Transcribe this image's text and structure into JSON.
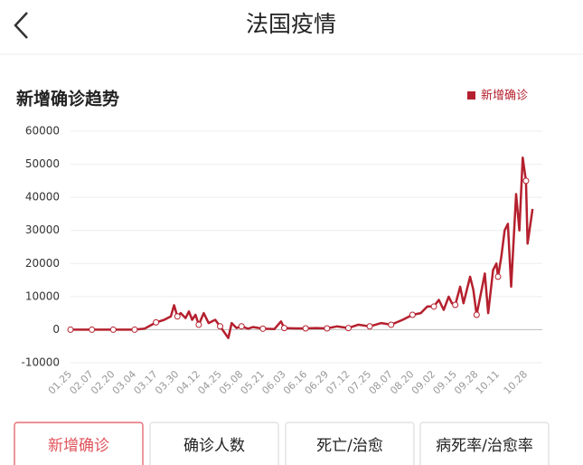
{
  "header": {
    "title": "法国疫情"
  },
  "chart_data": {
    "type": "line",
    "title": "新增确诊趋势",
    "x": [
      "01.25",
      "02.07",
      "02.20",
      "03.04",
      "03.10",
      "03.17",
      "03.22",
      "03.26",
      "03.28",
      "03.30",
      "04.01",
      "04.04",
      "04.06",
      "04.08",
      "04.10",
      "04.12",
      "04.15",
      "04.18",
      "04.22",
      "04.25",
      "04.30",
      "05.02",
      "05.05",
      "05.08",
      "05.12",
      "05.15",
      "05.21",
      "05.28",
      "06.01",
      "06.03",
      "06.10",
      "06.16",
      "06.22",
      "06.29",
      "07.05",
      "07.12",
      "07.18",
      "07.25",
      "08.01",
      "08.07",
      "08.14",
      "08.20",
      "08.25",
      "08.29",
      "09.02",
      "09.05",
      "09.08",
      "09.11",
      "09.13",
      "09.15",
      "09.18",
      "09.20",
      "09.24",
      "09.26",
      "09.28",
      "10.01",
      "10.03",
      "10.05",
      "10.08",
      "10.10",
      "10.11",
      "10.13",
      "10.15",
      "10.17",
      "10.19",
      "10.22",
      "10.24",
      "10.26",
      "10.28",
      "10.29",
      "11.01"
    ],
    "series": [
      {
        "name": "新增确诊",
        "color": "#b5202e",
        "values": [
          0,
          0,
          0,
          0,
          300,
          2200,
          3000,
          4000,
          7400,
          4000,
          5000,
          3500,
          5500,
          3000,
          4500,
          1500,
          5000,
          2000,
          3000,
          1000,
          -2500,
          2000,
          500,
          1000,
          300,
          800,
          300,
          200,
          2500,
          500,
          400,
          400,
          500,
          400,
          1000,
          500,
          1500,
          1000,
          2000,
          1500,
          3000,
          4500,
          5000,
          7000,
          7000,
          9000,
          6000,
          10000,
          8000,
          7500,
          13000,
          8000,
          16000,
          12000,
          4500,
          12000,
          17000,
          5000,
          18000,
          20000,
          16000,
          22000,
          30000,
          32000,
          13000,
          41000,
          30000,
          52000,
          45000,
          26000,
          36500
        ]
      }
    ],
    "xlim": [
      "01.25",
      "11.02"
    ],
    "xticks": [
      "01.25",
      "02.07",
      "02.20",
      "03.04",
      "03.17",
      "03.30",
      "04.12",
      "04.25",
      "05.08",
      "05.21",
      "06.03",
      "06.16",
      "06.29",
      "07.12",
      "07.25",
      "08.07",
      "08.20",
      "09.02",
      "09.15",
      "09.28",
      "10.11",
      "10.28"
    ],
    "ylim": [
      -10000,
      60000
    ],
    "yticks": [
      -10000,
      0,
      10000,
      20000,
      30000,
      40000,
      50000,
      60000
    ],
    "grid": true,
    "legend": "top-right"
  },
  "tabs": [
    "新增确诊",
    "确诊人数",
    "死亡/治愈",
    "病死率/治愈率"
  ],
  "selected_tab": 0
}
